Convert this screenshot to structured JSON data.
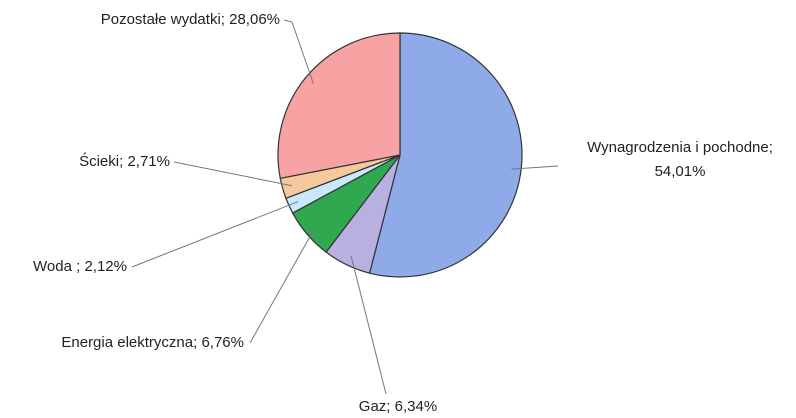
{
  "chart_data": {
    "type": "pie",
    "categories": [
      "Wynagrodzenia i pochodne;",
      "Gaz;",
      "Energia elektryczna;",
      "Woda ;",
      "Ścieki;",
      "Pozostałe wydatki;"
    ],
    "values": [
      54.01,
      6.34,
      6.76,
      2.12,
      2.71,
      28.06
    ],
    "value_labels": [
      "54,01%",
      "6,34%",
      "6,76%",
      "2,12%",
      "2,71%",
      "28,06%"
    ],
    "colors": [
      "#8eaae8",
      "#b9b0e2",
      "#2fa84f",
      "#c9e9fa",
      "#f6c99c",
      "#f8a3a3"
    ]
  }
}
